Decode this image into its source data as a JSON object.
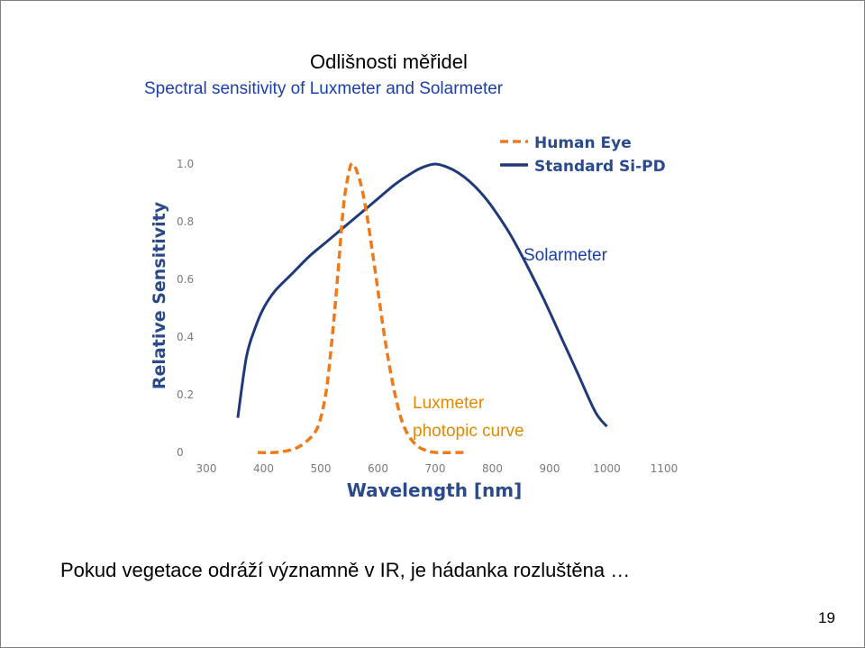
{
  "slide": {
    "title": "Odlišnosti měřidel",
    "subtitle": "Spectral sensitivity of Luxmeter and Solarmeter",
    "text": "Pokud vegetace odráží významně v IR, je hádanka rozluštěna …",
    "page_number": "19"
  },
  "chart_data": {
    "type": "line",
    "xlabel": "Wavelength [nm]",
    "ylabel": "Relative Sensitivity",
    "xlim": [
      300,
      1100
    ],
    "ylim": [
      0,
      1.0
    ],
    "x_ticks": [
      "300",
      "400",
      "500",
      "600",
      "700",
      "800",
      "900",
      "1000",
      "1100"
    ],
    "y_ticks": [
      "0",
      "0.2",
      "0.4",
      "0.6",
      "0.8",
      "1.0"
    ],
    "legend_position": "top-right",
    "series": [
      {
        "name": "Human Eye",
        "color": "#f07a1a",
        "style": "dashed",
        "x": [
          390,
          420,
          450,
          470,
          490,
          500,
          510,
          520,
          530,
          540,
          550,
          555,
          560,
          570,
          580,
          590,
          600,
          610,
          620,
          630,
          640,
          650,
          660,
          670,
          680,
          700,
          750
        ],
        "y": [
          0.0,
          0.0,
          0.01,
          0.03,
          0.07,
          0.12,
          0.22,
          0.4,
          0.62,
          0.86,
          0.98,
          1.0,
          0.99,
          0.93,
          0.83,
          0.7,
          0.56,
          0.42,
          0.3,
          0.2,
          0.12,
          0.07,
          0.04,
          0.02,
          0.01,
          0.0,
          0.0
        ]
      },
      {
        "name": "Standard Si-PD",
        "color": "#1f3a7a",
        "style": "solid",
        "x": [
          355,
          370,
          385,
          400,
          420,
          450,
          480,
          510,
          540,
          570,
          600,
          630,
          660,
          680,
          700,
          720,
          740,
          760,
          780,
          800,
          830,
          860,
          890,
          920,
          950,
          980,
          1000
        ],
        "y": [
          0.12,
          0.33,
          0.43,
          0.5,
          0.56,
          0.62,
          0.68,
          0.73,
          0.78,
          0.83,
          0.88,
          0.93,
          0.97,
          0.99,
          1.0,
          0.99,
          0.97,
          0.94,
          0.9,
          0.85,
          0.76,
          0.65,
          0.53,
          0.4,
          0.27,
          0.14,
          0.09
        ]
      }
    ],
    "annotations": [
      {
        "text": "Solarmeter",
        "color": "#1c3fa8"
      },
      {
        "text": "Luxmeter\nphotopic curve",
        "color": "#e08a00"
      }
    ]
  }
}
